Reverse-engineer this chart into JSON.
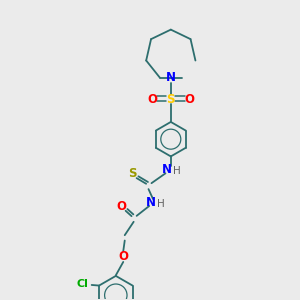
{
  "background_color": "#ebebeb",
  "atom_colors": {
    "N": "#0000ff",
    "O": "#ff0000",
    "S_sulfonyl": "#ffcc00",
    "S_thio": "#999900",
    "Cl": "#00aa00",
    "C": "#2d6e6e",
    "H": "#606060"
  },
  "figsize": [
    3.0,
    3.0
  ],
  "dpi": 100
}
